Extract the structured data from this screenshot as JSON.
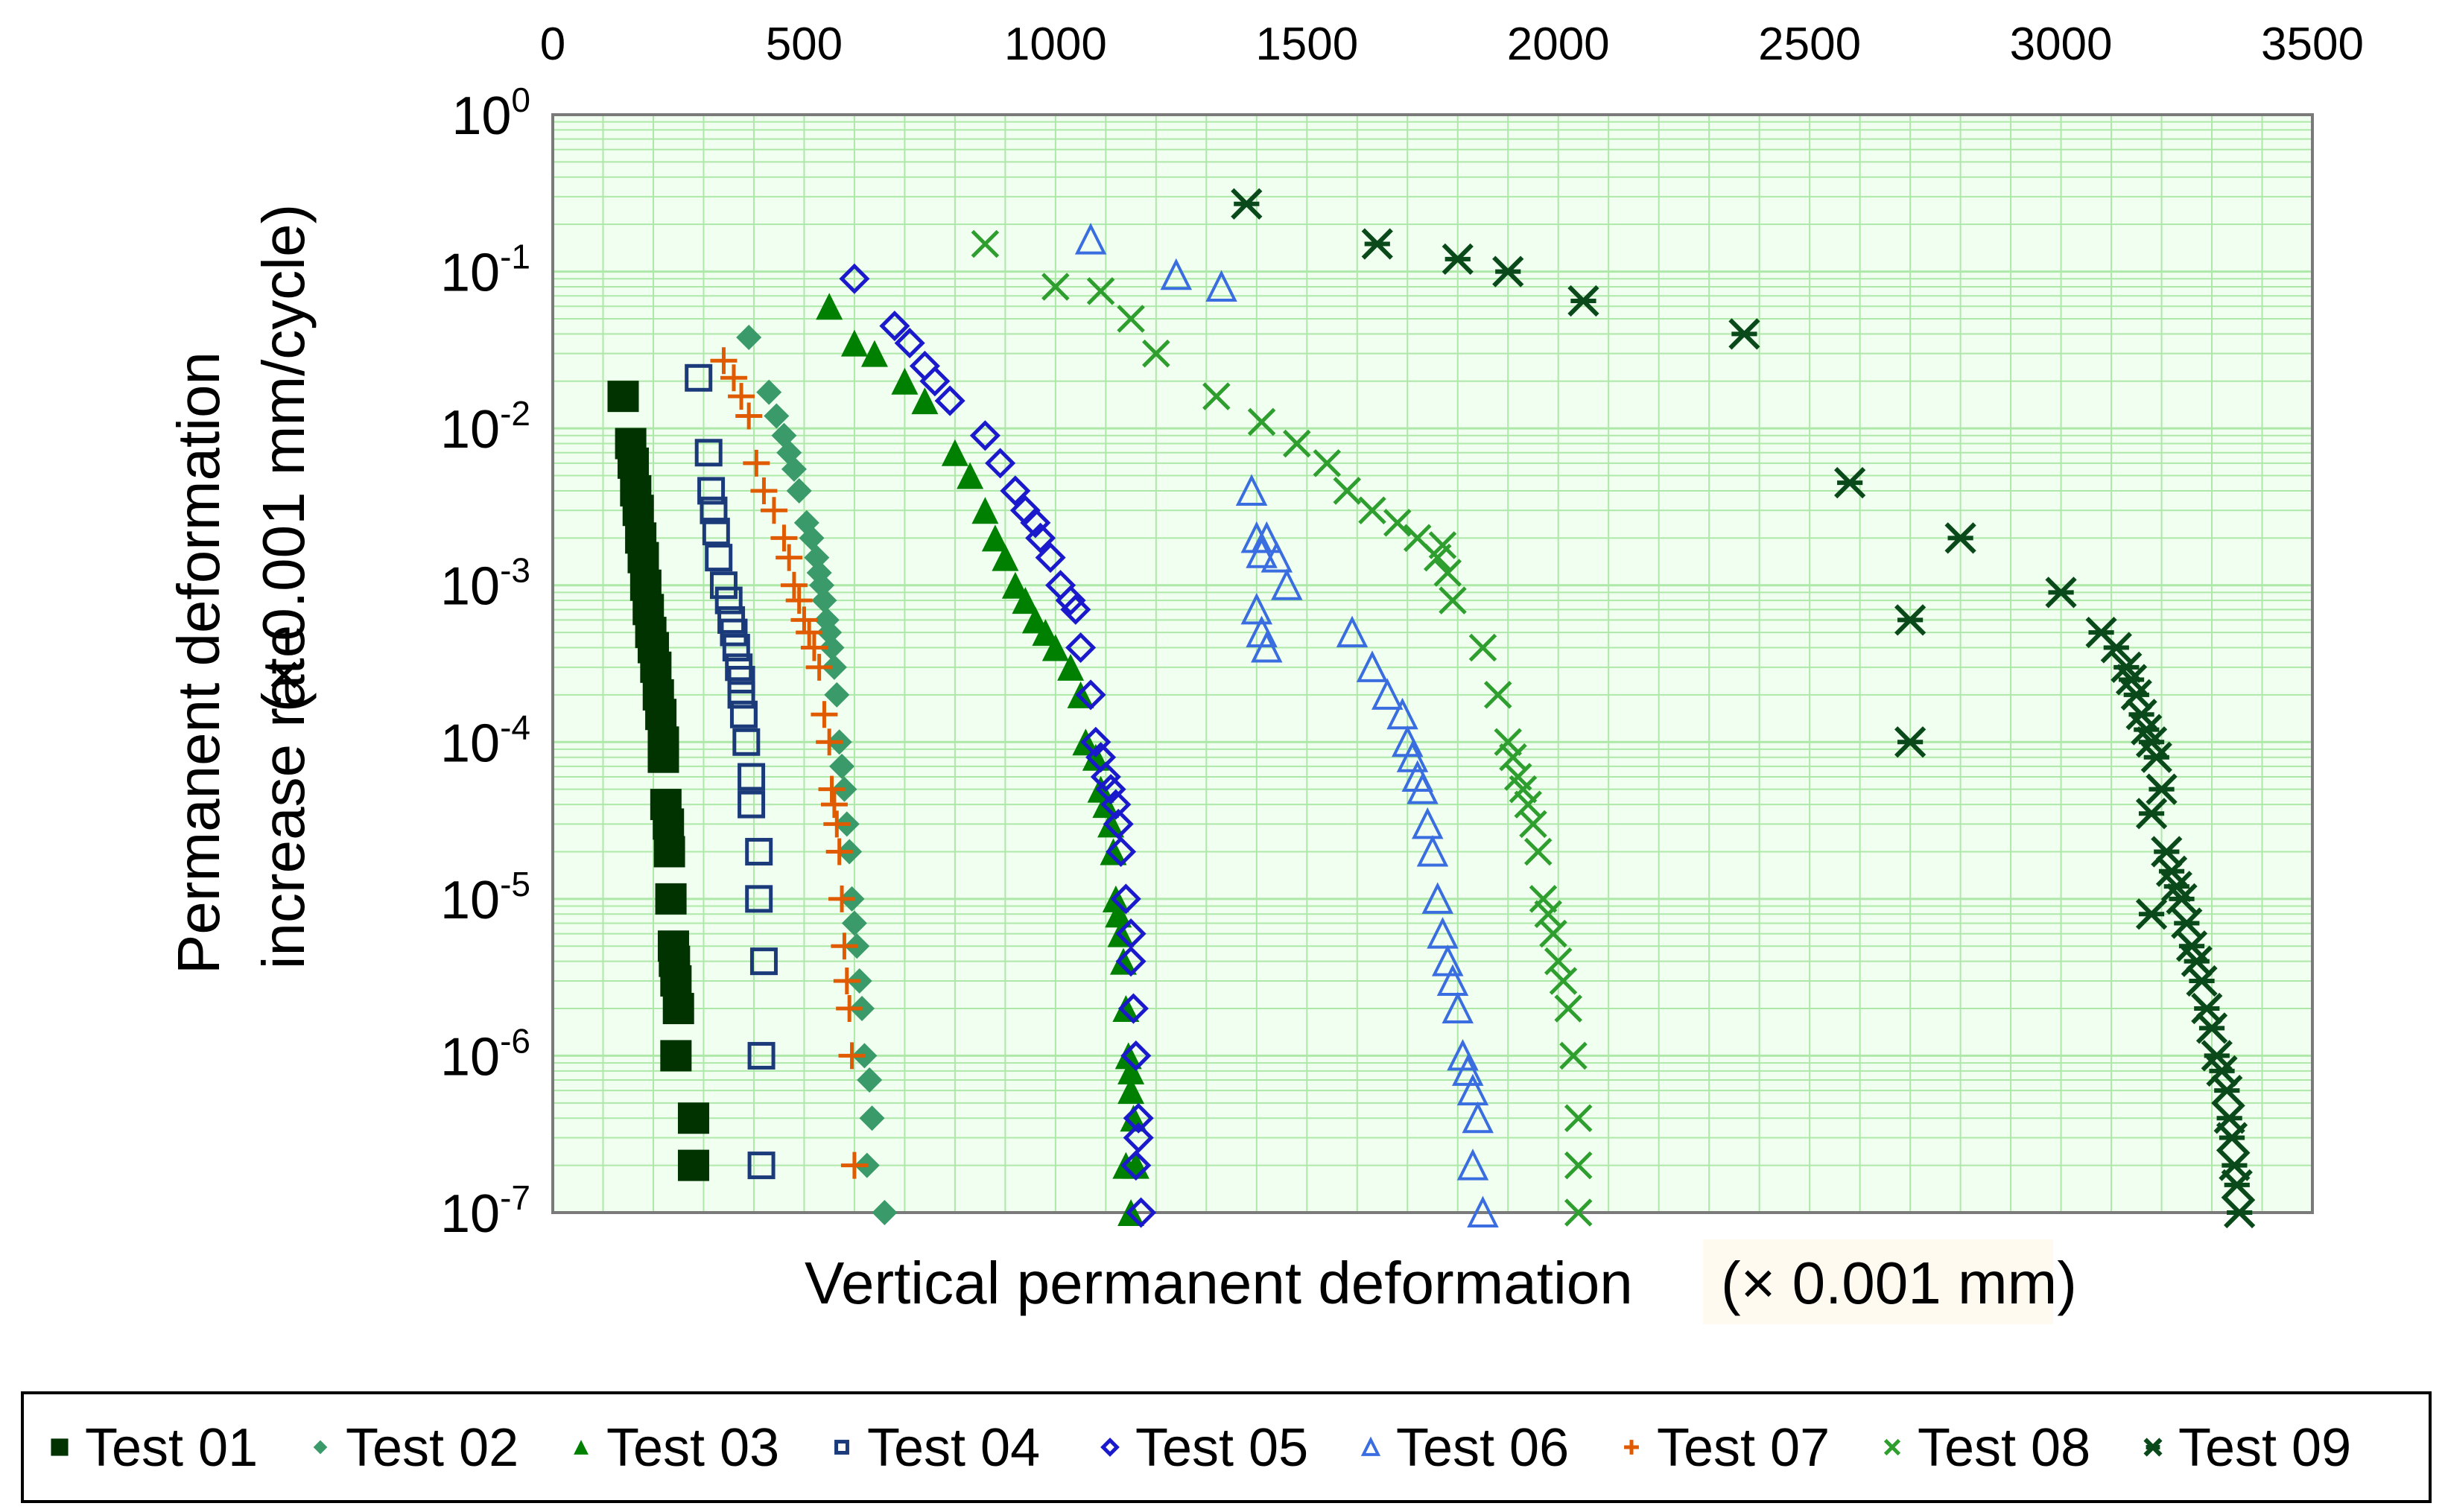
{
  "chart_data": {
    "type": "scatter",
    "xlabel": "Vertical permanent deformation",
    "xlabel_unit": "(× 0.001 mm)",
    "ylabel_line1": "Permanent deformation",
    "ylabel_line2": "increase rate",
    "ylabel_unit": "(× 0.001 mm/cycle)",
    "x_axis_position": "top",
    "xlim": [
      0,
      3500
    ],
    "x_ticks": [
      0,
      500,
      1000,
      1500,
      2000,
      2500,
      3000,
      3500
    ],
    "y_scale": "log",
    "ylim_exponents": [
      -7,
      0
    ],
    "y_ticks": [
      {
        "base": "10",
        "exp": "0"
      },
      {
        "base": "10",
        "exp": "-1"
      },
      {
        "base": "10",
        "exp": "-2"
      },
      {
        "base": "10",
        "exp": "-3"
      },
      {
        "base": "10",
        "exp": "-4"
      },
      {
        "base": "10",
        "exp": "-5"
      },
      {
        "base": "10",
        "exp": "-6"
      },
      {
        "base": "10",
        "exp": "-7"
      }
    ],
    "grid": true,
    "legend_position": "bottom",
    "series": [
      {
        "name": "Test 01",
        "marker": "square-filled",
        "color": "#003300",
        "points": [
          [
            140,
            0.016
          ],
          [
            155,
            0.008
          ],
          [
            160,
            0.006
          ],
          [
            165,
            0.004
          ],
          [
            170,
            0.003
          ],
          [
            175,
            0.002
          ],
          [
            180,
            0.0015
          ],
          [
            185,
            0.001
          ],
          [
            190,
            0.0007
          ],
          [
            195,
            0.0005
          ],
          [
            200,
            0.0004
          ],
          [
            205,
            0.0003
          ],
          [
            210,
            0.0002
          ],
          [
            215,
            0.00015
          ],
          [
            220,
            0.0001
          ],
          [
            220,
            8e-05
          ],
          [
            225,
            4e-05
          ],
          [
            230,
            3e-05
          ],
          [
            232,
            2e-05
          ],
          [
            235,
            1e-05
          ],
          [
            240,
            5e-06
          ],
          [
            242,
            4e-06
          ],
          [
            245,
            3e-06
          ],
          [
            250,
            2e-06
          ],
          [
            245,
            1e-06
          ],
          [
            280,
            4e-07
          ],
          [
            280,
            2e-07
          ]
        ]
      },
      {
        "name": "Test 02",
        "marker": "diamond-filled",
        "color": "#3a9a6a",
        "points": [
          [
            390,
            0.038
          ],
          [
            430,
            0.017
          ],
          [
            445,
            0.012
          ],
          [
            460,
            0.009
          ],
          [
            470,
            0.007
          ],
          [
            480,
            0.0055
          ],
          [
            490,
            0.004
          ],
          [
            505,
            0.0025
          ],
          [
            515,
            0.002
          ],
          [
            525,
            0.0015
          ],
          [
            530,
            0.0012
          ],
          [
            535,
            0.001
          ],
          [
            540,
            0.0008
          ],
          [
            545,
            0.0006
          ],
          [
            550,
            0.0005
          ],
          [
            555,
            0.0004
          ],
          [
            560,
            0.0003
          ],
          [
            565,
            0.0002
          ],
          [
            570,
            0.0001
          ],
          [
            575,
            7e-05
          ],
          [
            580,
            5e-05
          ],
          [
            585,
            3e-05
          ],
          [
            590,
            2e-05
          ],
          [
            595,
            1e-05
          ],
          [
            600,
            7e-06
          ],
          [
            605,
            5e-06
          ],
          [
            610,
            3e-06
          ],
          [
            615,
            2e-06
          ],
          [
            620,
            1e-06
          ],
          [
            630,
            7e-07
          ],
          [
            635,
            4e-07
          ],
          [
            625,
            2e-07
          ],
          [
            660,
            1e-07
          ]
        ]
      },
      {
        "name": "Test 03",
        "marker": "triangle-filled",
        "color": "#008000",
        "points": [
          [
            550,
            0.06
          ],
          [
            600,
            0.035
          ],
          [
            640,
            0.03
          ],
          [
            700,
            0.02
          ],
          [
            740,
            0.015
          ],
          [
            800,
            0.007
          ],
          [
            830,
            0.005
          ],
          [
            860,
            0.003
          ],
          [
            880,
            0.002
          ],
          [
            900,
            0.0015
          ],
          [
            920,
            0.001
          ],
          [
            940,
            0.0008
          ],
          [
            960,
            0.0006
          ],
          [
            980,
            0.0005
          ],
          [
            1000,
            0.0004
          ],
          [
            1030,
            0.0003
          ],
          [
            1050,
            0.0002
          ],
          [
            1060,
            0.0001
          ],
          [
            1080,
            8e-05
          ],
          [
            1090,
            5e-05
          ],
          [
            1100,
            4e-05
          ],
          [
            1110,
            3e-05
          ],
          [
            1115,
            2e-05
          ],
          [
            1120,
            1e-05
          ],
          [
            1125,
            8e-06
          ],
          [
            1130,
            6e-06
          ],
          [
            1135,
            4e-06
          ],
          [
            1140,
            2e-06
          ],
          [
            1145,
            1e-06
          ],
          [
            1150,
            8e-07
          ],
          [
            1150,
            6e-07
          ],
          [
            1155,
            4e-07
          ],
          [
            1140,
            2e-07
          ],
          [
            1160,
            2e-07
          ],
          [
            1150,
            1e-07
          ]
        ]
      },
      {
        "name": "Test 04",
        "marker": "square-open",
        "color": "#1a3a7a",
        "points": [
          [
            290,
            0.021
          ],
          [
            310,
            0.007
          ],
          [
            315,
            0.004
          ],
          [
            320,
            0.003
          ],
          [
            325,
            0.0022
          ],
          [
            330,
            0.0015
          ],
          [
            340,
            0.001
          ],
          [
            350,
            0.0008
          ],
          [
            355,
            0.0006
          ],
          [
            360,
            0.0005
          ],
          [
            365,
            0.0004
          ],
          [
            370,
            0.0003
          ],
          [
            375,
            0.00025
          ],
          [
            375,
            0.0002
          ],
          [
            380,
            0.00015
          ],
          [
            385,
            0.0001
          ],
          [
            395,
            6e-05
          ],
          [
            395,
            4e-05
          ],
          [
            410,
            2e-05
          ],
          [
            410,
            1e-05
          ],
          [
            420,
            4e-06
          ],
          [
            415,
            1e-06
          ],
          [
            415,
            2e-07
          ]
        ]
      },
      {
        "name": "Test 05",
        "marker": "diamond-open",
        "color": "#1a1acc",
        "points": [
          [
            600,
            0.09
          ],
          [
            680,
            0.045
          ],
          [
            710,
            0.035
          ],
          [
            740,
            0.025
          ],
          [
            760,
            0.02
          ],
          [
            790,
            0.015
          ],
          [
            860,
            0.009
          ],
          [
            890,
            0.006
          ],
          [
            920,
            0.004
          ],
          [
            940,
            0.003
          ],
          [
            960,
            0.0025
          ],
          [
            970,
            0.002
          ],
          [
            990,
            0.0015
          ],
          [
            1010,
            0.001
          ],
          [
            1030,
            0.0008
          ],
          [
            1040,
            0.0007
          ],
          [
            1050,
            0.0004
          ],
          [
            1070,
            0.0002
          ],
          [
            1080,
            0.0001
          ],
          [
            1090,
            8e-05
          ],
          [
            1100,
            6e-05
          ],
          [
            1110,
            5e-05
          ],
          [
            1120,
            4e-05
          ],
          [
            1125,
            3e-05
          ],
          [
            1130,
            2e-05
          ],
          [
            1140,
            1e-05
          ],
          [
            1150,
            6e-06
          ],
          [
            1150,
            4e-06
          ],
          [
            1155,
            2e-06
          ],
          [
            1160,
            1e-06
          ],
          [
            1165,
            4e-07
          ],
          [
            1165,
            3e-07
          ],
          [
            1160,
            2e-07
          ],
          [
            1170,
            1e-07
          ]
        ]
      },
      {
        "name": "Test 06",
        "marker": "triangle-open",
        "color": "#3a6ee0",
        "points": [
          [
            1070,
            0.16
          ],
          [
            1240,
            0.095
          ],
          [
            1330,
            0.08
          ],
          [
            1390,
            0.004
          ],
          [
            1400,
            0.002
          ],
          [
            1410,
            0.0016
          ],
          [
            1420,
            0.002
          ],
          [
            1440,
            0.0015
          ],
          [
            1460,
            0.001
          ],
          [
            1400,
            0.0007
          ],
          [
            1410,
            0.0005
          ],
          [
            1420,
            0.0004
          ],
          [
            1590,
            0.0005
          ],
          [
            1630,
            0.0003
          ],
          [
            1660,
            0.0002
          ],
          [
            1690,
            0.00015
          ],
          [
            1700,
            0.0001
          ],
          [
            1710,
            8e-05
          ],
          [
            1720,
            6e-05
          ],
          [
            1730,
            5e-05
          ],
          [
            1740,
            3e-05
          ],
          [
            1750,
            2e-05
          ],
          [
            1760,
            1e-05
          ],
          [
            1770,
            6e-06
          ],
          [
            1780,
            4e-06
          ],
          [
            1790,
            3e-06
          ],
          [
            1800,
            2e-06
          ],
          [
            1810,
            1e-06
          ],
          [
            1820,
            8e-07
          ],
          [
            1830,
            6e-07
          ],
          [
            1840,
            4e-07
          ],
          [
            1830,
            2e-07
          ],
          [
            1850,
            1e-07
          ]
        ]
      },
      {
        "name": "Test 07",
        "marker": "plus",
        "color": "#e05a00",
        "points": [
          [
            340,
            0.027
          ],
          [
            360,
            0.021
          ],
          [
            375,
            0.016
          ],
          [
            390,
            0.012
          ],
          [
            405,
            0.006
          ],
          [
            420,
            0.004
          ],
          [
            440,
            0.003
          ],
          [
            460,
            0.002
          ],
          [
            470,
            0.0015
          ],
          [
            480,
            0.001
          ],
          [
            490,
            0.0008
          ],
          [
            500,
            0.0006
          ],
          [
            510,
            0.0005
          ],
          [
            520,
            0.0004
          ],
          [
            530,
            0.0003
          ],
          [
            540,
            0.00015
          ],
          [
            550,
            0.0001
          ],
          [
            555,
            5e-05
          ],
          [
            560,
            4e-05
          ],
          [
            565,
            3e-05
          ],
          [
            570,
            2e-05
          ],
          [
            575,
            1e-05
          ],
          [
            580,
            5e-06
          ],
          [
            585,
            3e-06
          ],
          [
            590,
            2e-06
          ],
          [
            595,
            1e-06
          ],
          [
            600,
            2e-07
          ]
        ]
      },
      {
        "name": "Test 08",
        "marker": "cross",
        "color": "#2e9e2e",
        "points": [
          [
            860,
            0.15
          ],
          [
            1000,
            0.08
          ],
          [
            1090,
            0.075
          ],
          [
            1150,
            0.05
          ],
          [
            1200,
            0.03
          ],
          [
            1320,
            0.016
          ],
          [
            1410,
            0.011
          ],
          [
            1480,
            0.008
          ],
          [
            1540,
            0.006
          ],
          [
            1580,
            0.004
          ],
          [
            1630,
            0.003
          ],
          [
            1680,
            0.0025
          ],
          [
            1720,
            0.002
          ],
          [
            1760,
            0.0015
          ],
          [
            1770,
            0.0018
          ],
          [
            1780,
            0.0012
          ],
          [
            1790,
            0.0008
          ],
          [
            1850,
            0.0004
          ],
          [
            1880,
            0.0002
          ],
          [
            1900,
            0.0001
          ],
          [
            1910,
            8e-05
          ],
          [
            1920,
            6e-05
          ],
          [
            1930,
            5e-05
          ],
          [
            1940,
            4e-05
          ],
          [
            1950,
            3e-05
          ],
          [
            1960,
            2e-05
          ],
          [
            1970,
            1e-05
          ],
          [
            1980,
            8e-06
          ],
          [
            1990,
            6e-06
          ],
          [
            2000,
            4e-06
          ],
          [
            2010,
            3e-06
          ],
          [
            2020,
            2e-06
          ],
          [
            2030,
            1e-06
          ],
          [
            2040,
            4e-07
          ],
          [
            2040,
            2e-07
          ],
          [
            2040,
            1e-07
          ]
        ]
      },
      {
        "name": "Test 09",
        "marker": "asterisk",
        "color": "#0a4a1a",
        "points": [
          [
            1380,
            0.27
          ],
          [
            1640,
            0.15
          ],
          [
            1800,
            0.12
          ],
          [
            1900,
            0.1
          ],
          [
            2050,
            0.065
          ],
          [
            2370,
            0.04
          ],
          [
            2580,
            0.0045
          ],
          [
            2800,
            0.002
          ],
          [
            2700,
            0.0006
          ],
          [
            3000,
            0.0009
          ],
          [
            3080,
            0.0005
          ],
          [
            3110,
            0.0004
          ],
          [
            3130,
            0.0003
          ],
          [
            3140,
            0.00025
          ],
          [
            3150,
            0.0002
          ],
          [
            3160,
            0.00015
          ],
          [
            3170,
            0.00012
          ],
          [
            3180,
            0.0001
          ],
          [
            3190,
            8e-05
          ],
          [
            3200,
            5e-05
          ],
          [
            3180,
            3.5e-05
          ],
          [
            3210,
            2e-05
          ],
          [
            3220,
            1.5e-05
          ],
          [
            3230,
            1.2e-05
          ],
          [
            3240,
            1e-05
          ],
          [
            3180,
            8e-06
          ],
          [
            3250,
            7e-06
          ],
          [
            3260,
            5e-06
          ],
          [
            3270,
            4e-06
          ],
          [
            3280,
            3e-06
          ],
          [
            3290,
            2e-06
          ],
          [
            3300,
            1.5e-06
          ],
          [
            3310,
            1e-06
          ],
          [
            3320,
            8e-07
          ],
          [
            3330,
            6e-07
          ],
          [
            3335,
            4e-07
          ],
          [
            3340,
            3e-07
          ],
          [
            3345,
            2e-07
          ],
          [
            3350,
            1.5e-07
          ],
          [
            3355,
            1e-07
          ],
          [
            2700,
            0.0001
          ]
        ]
      }
    ]
  }
}
